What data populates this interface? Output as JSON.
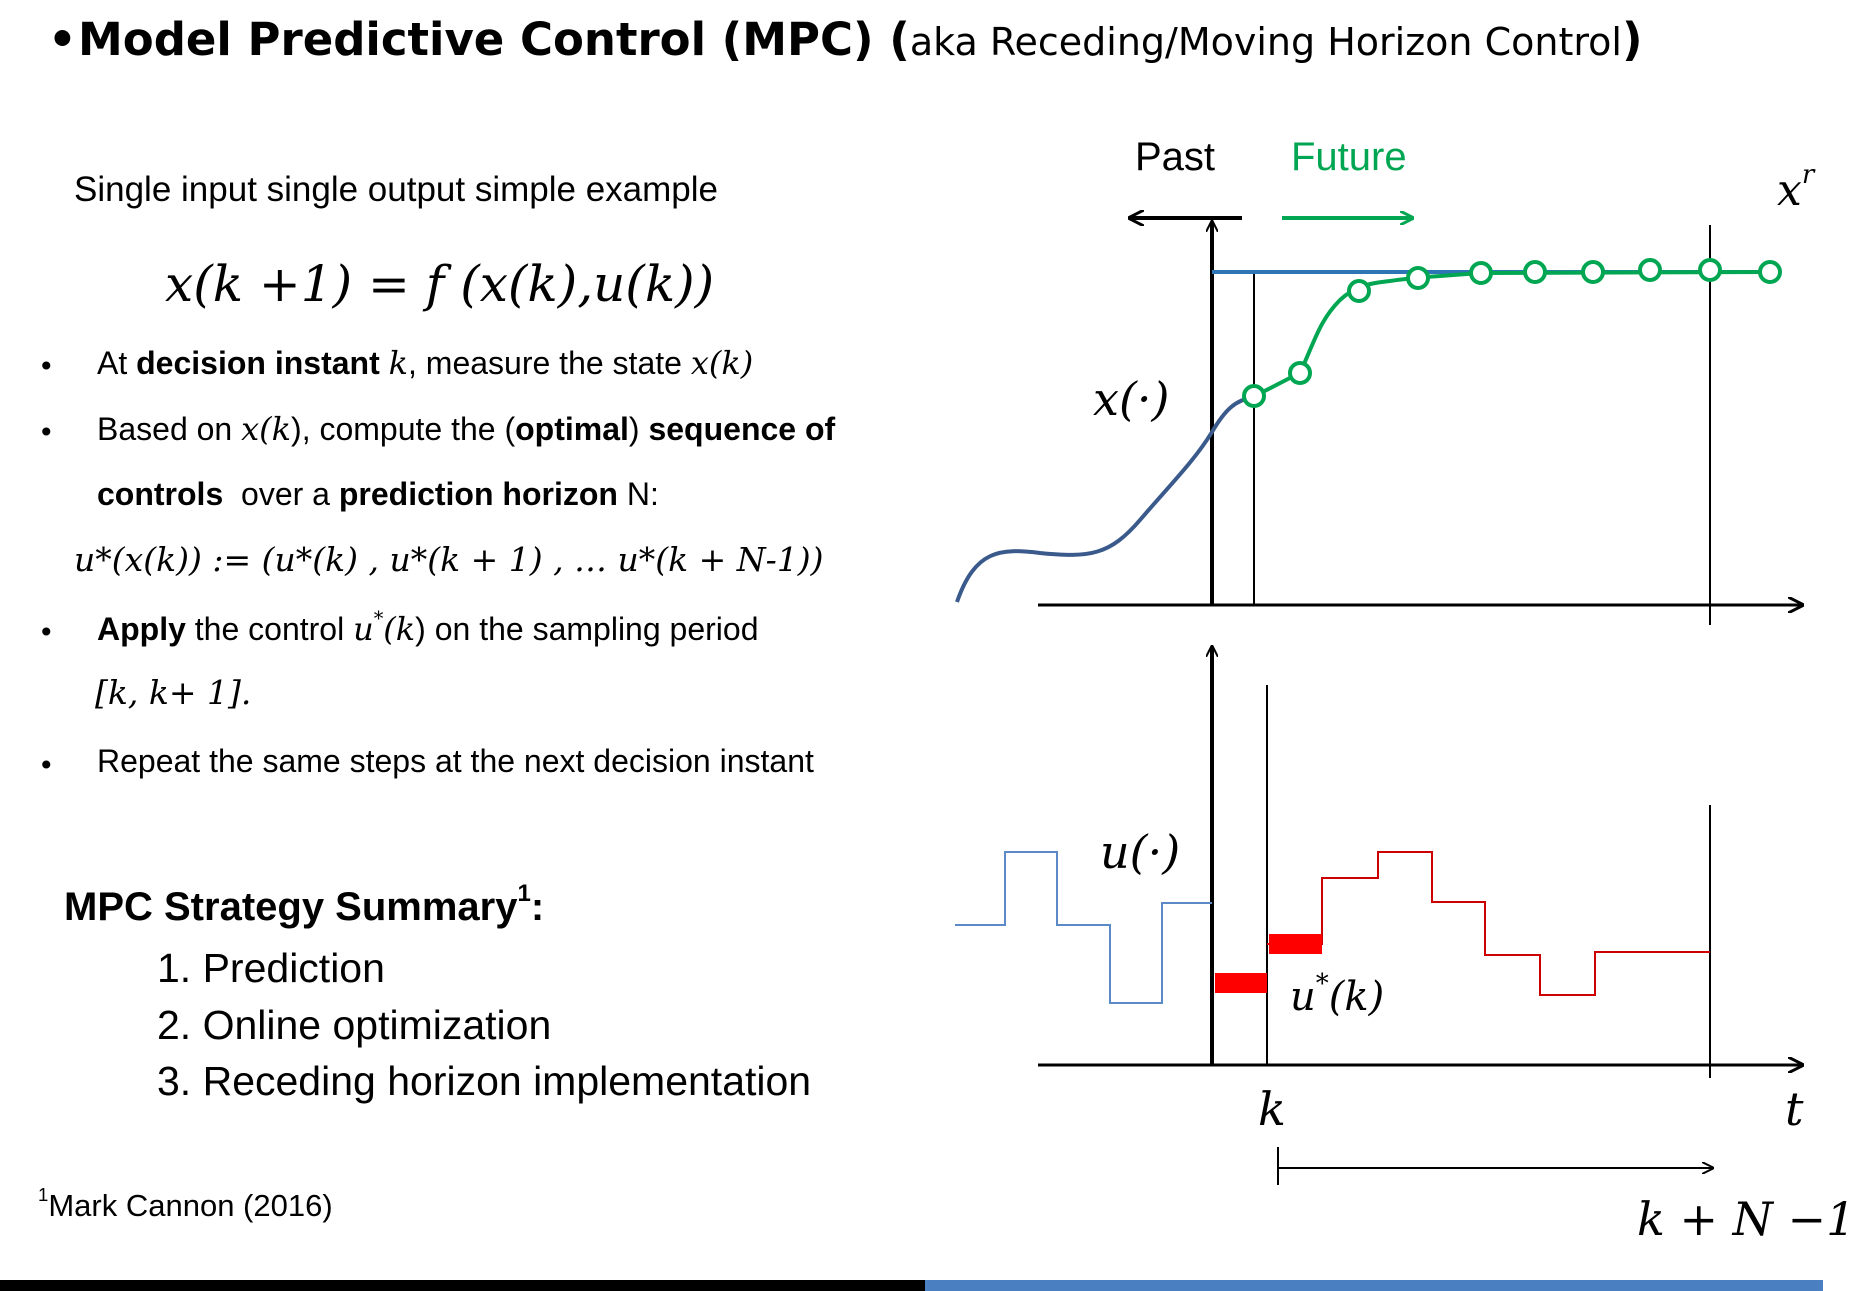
{
  "header": {
    "bullet": "•",
    "title_bold": "Model Predictive Control (MPC) (",
    "title_aka": "aka Receding/Moving Horizon Control",
    "title_close": ")"
  },
  "left": {
    "intro": "Single input single output simple example",
    "equation": {
      "lhs": "x(k +1)",
      "eq": " = ",
      "rhs": "f (x(k),u(k))"
    },
    "bullets": [
      {
        "marker": "•",
        "parts": [
          "At ",
          "decision instant ",
          "k",
          ", measure the state ",
          "x",
          "(",
          "k",
          ")"
        ]
      },
      {
        "marker": "•",
        "line1": [
          "Based on ",
          "x",
          "(",
          "k",
          "), compute the (",
          "optimal",
          ") ",
          "sequence of"
        ],
        "line2": [
          "controls",
          "  over a ",
          "prediction horizon",
          " N:"
        ]
      },
      {
        "marker": "•",
        "line1": [
          "Apply",
          " the control ",
          "u",
          "*",
          "(",
          "k",
          ") on the sampling period"
        ],
        "line2": "[k, k+ 1]."
      },
      {
        "marker": "•",
        "text": "Repeat the same steps at the next decision instant"
      }
    ],
    "sequence_eq": "u*(x(k)) := (u*(k) , u*(k + 1) , … u*(k + N-1))",
    "summary": {
      "title": "MPC Strategy Summary",
      "title_sup": "1",
      "title_colon": ":",
      "items": [
        "1. Prediction",
        "2. Online optimization",
        "3. Receding horizon implementation"
      ]
    },
    "footnote": {
      "sup": "1",
      "text": "Mark Cannon (2016)"
    }
  },
  "diagram": {
    "past_label": "Past",
    "future_label": "Future",
    "xr_label": "x",
    "xr_sup": "r",
    "x_label": "x(·)",
    "u_label": "u(·)",
    "ustar_label": "u",
    "ustar_sup": "*",
    "ustar_arg": "(k)",
    "k_label": "k",
    "t_label": "t",
    "horizon_label": "k + N −1",
    "colors": {
      "future": "#00a651",
      "past_state": "#3a5a8c",
      "reference": "#2e75b6",
      "past_input": "#5b8ac6",
      "planned_input": "#cc0000",
      "applied_input": "#ff0000"
    }
  }
}
